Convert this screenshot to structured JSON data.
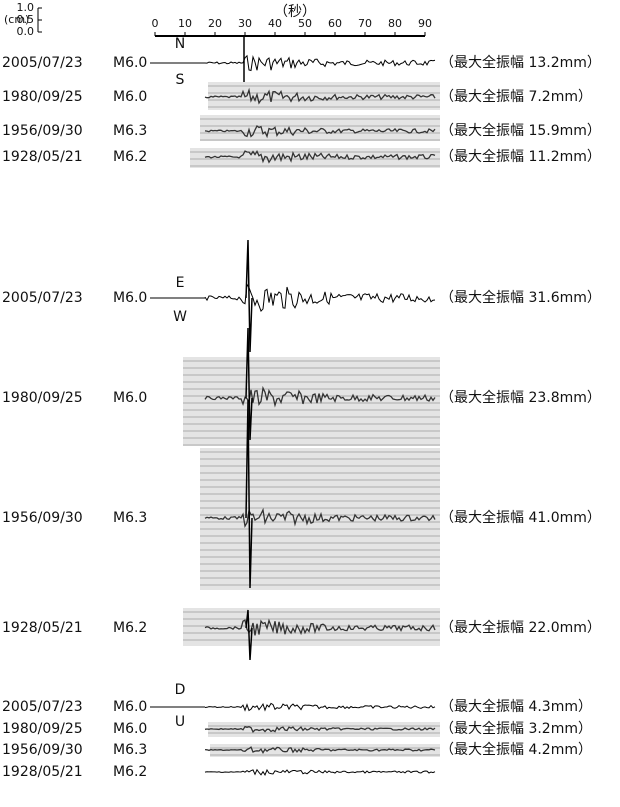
{
  "time_axis": {
    "label": "（秒）",
    "ticks": [
      0,
      10,
      20,
      30,
      40,
      50,
      60,
      70,
      80,
      90
    ]
  },
  "scale_bar": {
    "unit": "(cm)",
    "ticks": [
      "0.0",
      "0.5",
      "1.0"
    ]
  },
  "panels": [
    {
      "components": [
        "N",
        "S"
      ],
      "records": [
        {
          "date": "2005/07/23",
          "magnitude": "M6.0",
          "amplitude": "（最大全振幅 13.2mm）"
        },
        {
          "date": "1980/09/25",
          "magnitude": "M6.0",
          "amplitude": "（最大全振幅 7.2mm）"
        },
        {
          "date": "1956/09/30",
          "magnitude": "M6.3",
          "amplitude": "（最大全振幅 15.9mm）"
        },
        {
          "date": "1928/05/21",
          "magnitude": "M6.2",
          "amplitude": "（最大全振幅 11.2mm）"
        }
      ]
    },
    {
      "components": [
        "E",
        "W"
      ],
      "records": [
        {
          "date": "2005/07/23",
          "magnitude": "M6.0",
          "amplitude": "（最大全振幅 31.6mm）"
        },
        {
          "date": "1980/09/25",
          "magnitude": "M6.0",
          "amplitude": "（最大全振幅 23.8mm）"
        },
        {
          "date": "1956/09/30",
          "magnitude": "M6.3",
          "amplitude": "（最大全振幅 41.0mm）"
        },
        {
          "date": "1928/05/21",
          "magnitude": "M6.2",
          "amplitude": "（最大全振幅 22.0mm）"
        }
      ]
    },
    {
      "components": [
        "D",
        "U"
      ],
      "records": [
        {
          "date": "2005/07/23",
          "magnitude": "M6.0",
          "amplitude": "（最大全振幅 4.3mm）"
        },
        {
          "date": "1980/09/25",
          "magnitude": "M6.0",
          "amplitude": "（最大全振幅 3.2mm）"
        },
        {
          "date": "1956/09/30",
          "magnitude": "M6.3",
          "amplitude": "（最大全振幅 4.2mm）"
        },
        {
          "date": "1928/05/21",
          "magnitude": "M6.2"
        }
      ]
    }
  ]
}
